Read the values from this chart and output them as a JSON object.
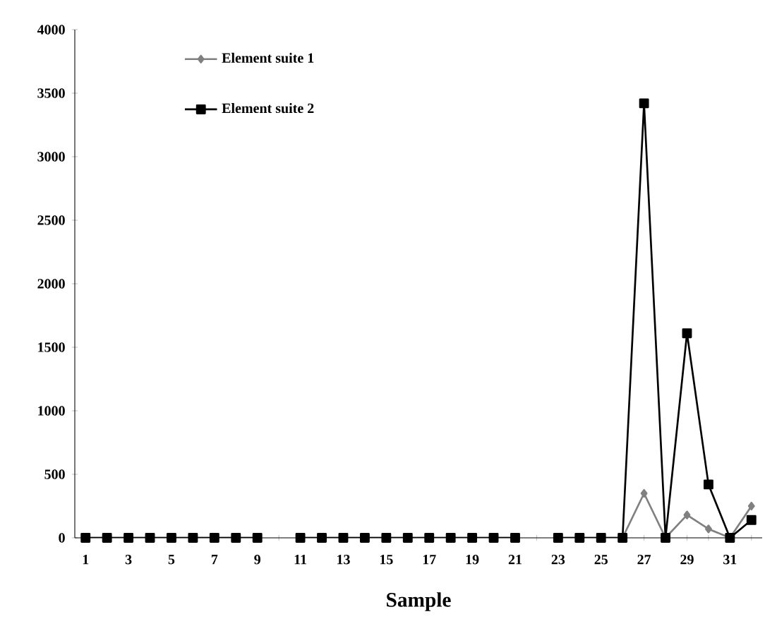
{
  "chart_data": {
    "type": "line",
    "xlabel": "Sample",
    "categories": [
      "1",
      null,
      "3",
      null,
      "5",
      null,
      "7",
      null,
      "9",
      null,
      "11",
      null,
      "13",
      null,
      "15",
      null,
      "17",
      null,
      "19",
      null,
      "21",
      null,
      "23",
      null,
      "25",
      null,
      "27",
      null,
      "29",
      null,
      "31",
      null
    ],
    "series": [
      {
        "name": "Element suite 1",
        "color": "#808080",
        "marker": "diamond",
        "values": [
          0,
          0,
          0,
          0,
          0,
          0,
          0,
          0,
          0,
          null,
          0,
          0,
          0,
          0,
          0,
          0,
          0,
          0,
          0,
          0,
          0,
          null,
          0,
          0,
          0,
          0,
          350,
          0,
          180,
          70,
          0,
          250
        ]
      },
      {
        "name": "Element suite 2",
        "color": "#000000",
        "marker": "square",
        "values": [
          0,
          0,
          0,
          0,
          0,
          0,
          0,
          0,
          0,
          null,
          0,
          0,
          0,
          0,
          0,
          0,
          0,
          0,
          0,
          0,
          0,
          null,
          0,
          0,
          0,
          0,
          3420,
          0,
          1610,
          420,
          0,
          140
        ]
      }
    ],
    "ylim": [
      0,
      4000
    ],
    "yticks": [
      0,
      500,
      1000,
      1500,
      2000,
      2500,
      3000,
      3500,
      4000
    ],
    "grid": false,
    "legend": "top left",
    "line_style": "solid"
  }
}
